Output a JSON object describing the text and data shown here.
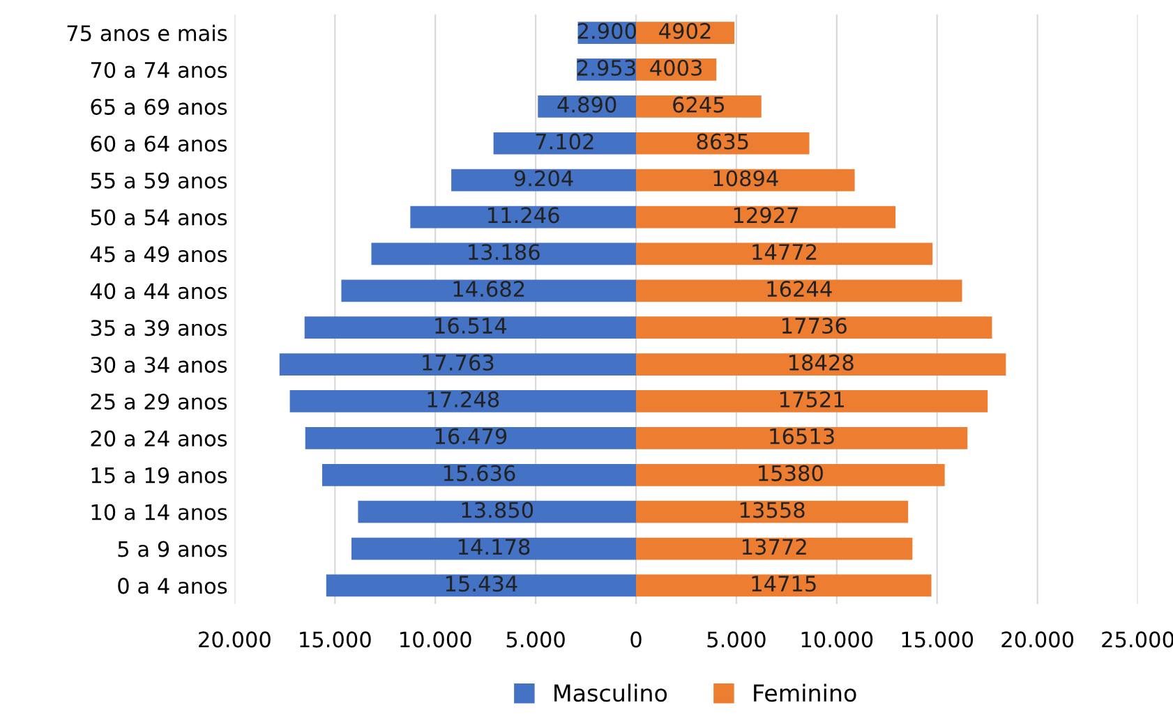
{
  "chart_data": {
    "type": "bar",
    "orientation": "horizontal",
    "categories": [
      "75 anos e mais",
      "70 a 74 anos",
      "65 a 69 anos",
      "60 a 64 anos",
      "55 a 59 anos",
      "50 a 54 anos",
      "45 a 49 anos",
      "40 a 44 anos",
      "35 a 39 anos",
      "30 a 34 anos",
      "25 a 29 anos",
      "20 a 24 anos",
      "15 a 19 anos",
      "10 a 14 anos",
      "5 a 9 anos",
      "0 a 4 anos"
    ],
    "series": [
      {
        "name": "Masculino",
        "color": "#4472c4",
        "values": [
          2900,
          2953,
          4890,
          7102,
          9204,
          11246,
          13186,
          14682,
          16514,
          17763,
          17248,
          16479,
          15636,
          13850,
          14178,
          15434
        ],
        "base": [
          -2900,
          -2953,
          -4890,
          -7102,
          -9204,
          -11246,
          -13186,
          -14682,
          -16514,
          -17763,
          -17248,
          -16479,
          -15636,
          -13850,
          -14178,
          -15434
        ],
        "value_labels": [
          "2.900",
          "2.953",
          "4.890",
          "7.102",
          "9.204",
          "11.246",
          "13.186",
          "14.682",
          "16.514",
          "17.763",
          "17.248",
          "16.479",
          "15.636",
          "13.850",
          "14.178",
          "15.434"
        ]
      },
      {
        "name": "Feminino",
        "color": "#ed7d31",
        "values": [
          4902,
          4003,
          6245,
          8635,
          10894,
          12927,
          14772,
          16244,
          17736,
          18428,
          17521,
          16513,
          15380,
          13558,
          13772,
          14715
        ],
        "value_labels": [
          "4902",
          "4003",
          "6245",
          "8635",
          "10894",
          "12927",
          "14772",
          "16244",
          "17736",
          "18428",
          "17521",
          "16513",
          "15380",
          "13558",
          "13772",
          "14715"
        ]
      }
    ],
    "xlim": [
      -20000,
      25000
    ],
    "xticks": [
      {
        "value": -20000,
        "label": "20.000"
      },
      {
        "value": -15000,
        "label": "15.000"
      },
      {
        "value": -10000,
        "label": "10.000"
      },
      {
        "value": -5000,
        "label": "5.000"
      },
      0,
      {
        "value": 5000,
        "label": "5.000"
      },
      {
        "value": 10000,
        "label": "10.000"
      },
      {
        "value": 15000,
        "label": "15.000"
      },
      {
        "value": 20000,
        "label": "20.000"
      },
      {
        "value": 25000,
        "label": "25.000"
      }
    ],
    "grid": "x",
    "legend": "bottom"
  }
}
